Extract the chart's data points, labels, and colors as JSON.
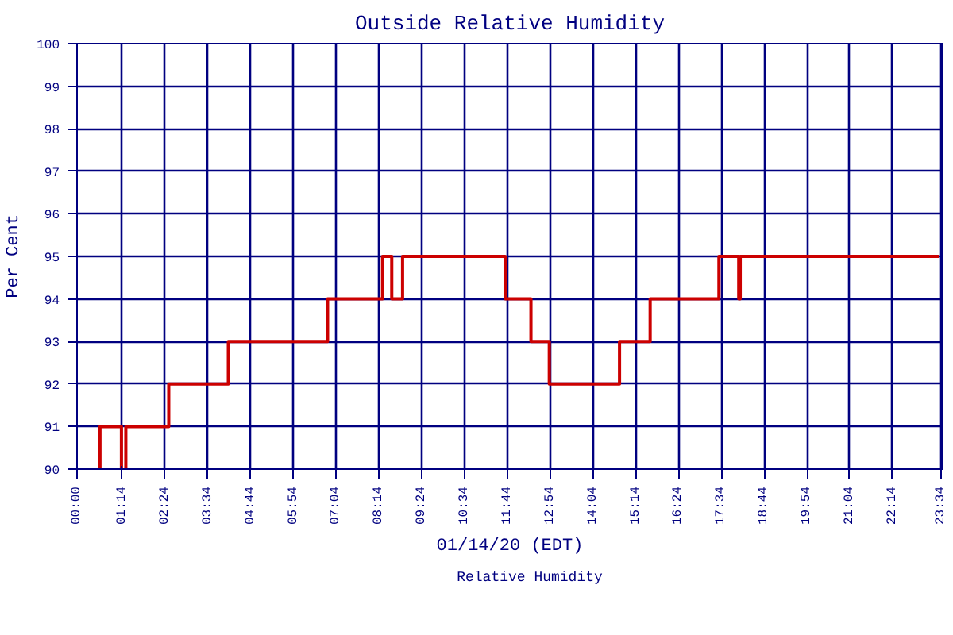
{
  "chart_data": {
    "type": "step",
    "title": "Outside Relative Humidity",
    "xlabel": "01/14/20 (EDT)",
    "ylabel": "Per Cent",
    "x": [
      0,
      0.625,
      1.21,
      1.33,
      2.5,
      4.125,
      6.83,
      8.33,
      8.58,
      8.875,
      11.67,
      12.375,
      12.875,
      14.79,
      15.625,
      17.5,
      18.04,
      18.08,
      23.5
    ],
    "series": [
      {
        "name": "Relative Humidity",
        "color": "#cc0000",
        "values": [
          90,
          91,
          90,
          91,
          92,
          93,
          94,
          95,
          94,
          95,
          94,
          93,
          92,
          93,
          94,
          95,
          94,
          95,
          95
        ]
      }
    ],
    "xlim": [
      0,
      23.6
    ],
    "xticks": [
      {
        "value": 0,
        "label": "00:00"
      },
      {
        "value": 1.2333,
        "label": "01:14"
      },
      {
        "value": 2.4,
        "label": "02:24"
      },
      {
        "value": 3.5667,
        "label": "03:34"
      },
      {
        "value": 4.7333,
        "label": "04:44"
      },
      {
        "value": 5.9,
        "label": "05:54"
      },
      {
        "value": 7.0667,
        "label": "07:04"
      },
      {
        "value": 8.2333,
        "label": "08:14"
      },
      {
        "value": 9.4,
        "label": "09:24"
      },
      {
        "value": 10.5667,
        "label": "10:34"
      },
      {
        "value": 11.7333,
        "label": "11:44"
      },
      {
        "value": 12.9,
        "label": "12:54"
      },
      {
        "value": 14.0667,
        "label": "14:04"
      },
      {
        "value": 15.2333,
        "label": "15:14"
      },
      {
        "value": 16.4,
        "label": "16:24"
      },
      {
        "value": 17.5667,
        "label": "17:34"
      },
      {
        "value": 18.7333,
        "label": "18:44"
      },
      {
        "value": 19.9,
        "label": "19:54"
      },
      {
        "value": 21.0667,
        "label": "21:04"
      },
      {
        "value": 22.2333,
        "label": "22:14"
      },
      {
        "value": 23.5667,
        "label": "23:34"
      }
    ],
    "ylim": [
      90,
      100
    ],
    "yticks": [
      90,
      91,
      92,
      93,
      94,
      95,
      96,
      97,
      98,
      99,
      100
    ],
    "grid": true,
    "legend": "bottom",
    "line_style": "solid",
    "marker": "none"
  }
}
